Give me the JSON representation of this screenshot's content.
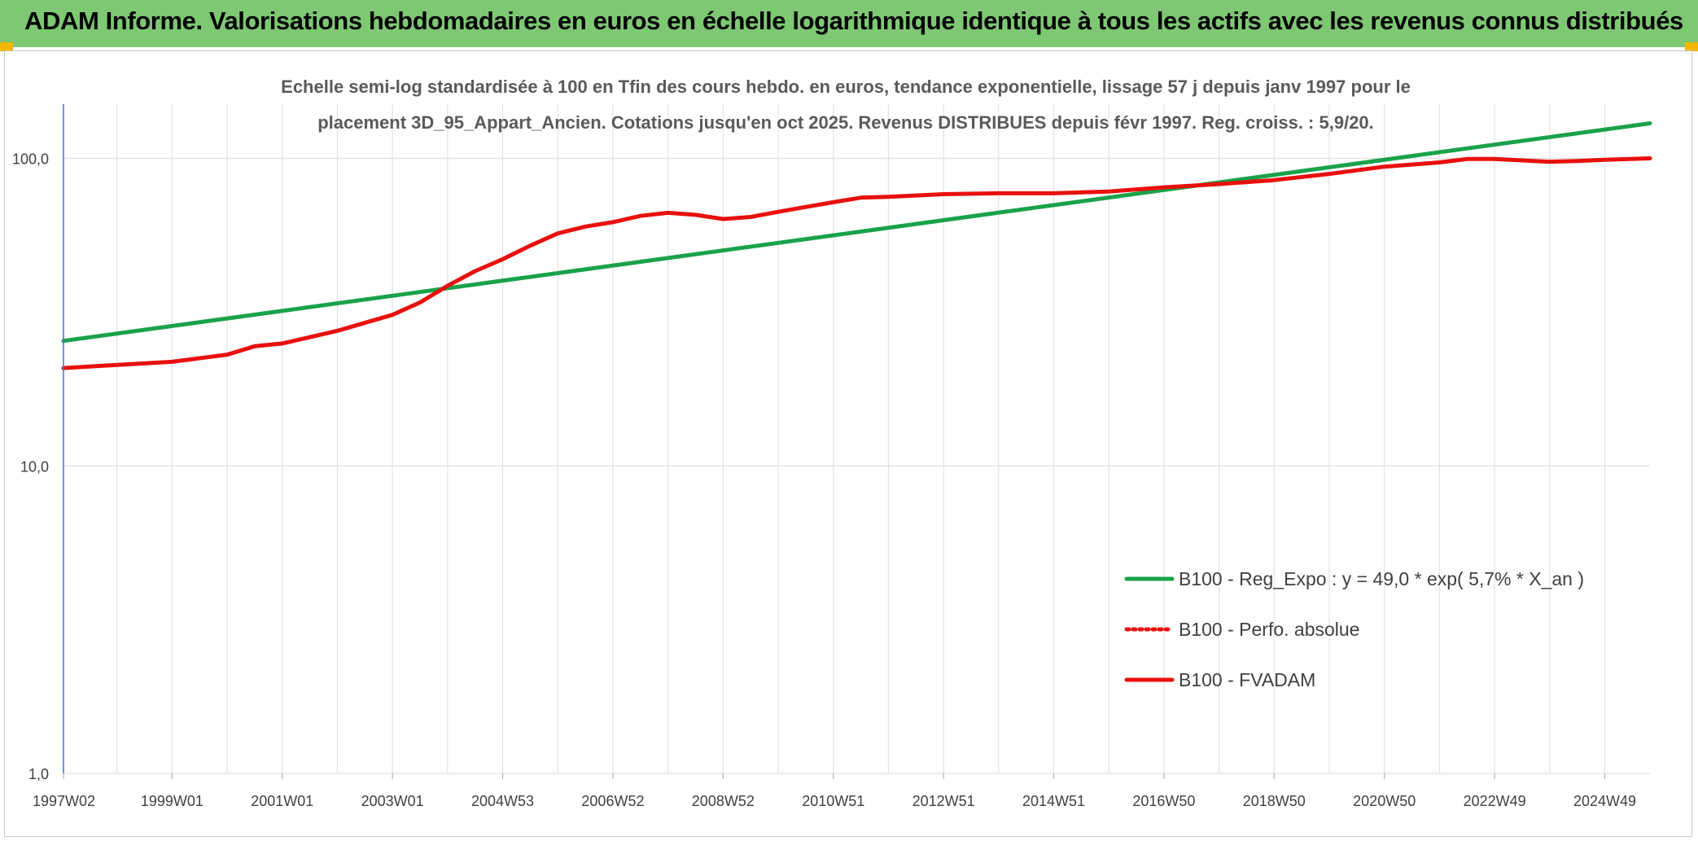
{
  "header": {
    "title": "ADAM Informe. Valorisations hebdomadaires en euros en échelle logarithmique identique à tous les actifs avec les revenus connus distribués"
  },
  "colors": {
    "banner": "#7ec874",
    "corner_accent": "#f2b705",
    "regression_line": "#1aa24a",
    "fvadam_line": "#e8100e",
    "perfo_line": "#e8100e"
  },
  "chart_data": {
    "type": "line",
    "title_lines": [
      "Echelle semi-log standardisée à 100 en Tfin des cours hebdo. en euros, tendance exponentielle, lissage 57 j depuis janv 1997 pour le",
      "placement 3D_95_Appart_Ancien. Cotations jusqu'en oct 2025. Revenus DISTRIBUES depuis févr 1997. Reg. croiss. : 5,9/20."
    ],
    "y_scale": "log",
    "ylim": [
      1,
      150
    ],
    "y_ticks": [
      {
        "value": 1,
        "label": "1,0"
      },
      {
        "value": 10,
        "label": "10,0"
      },
      {
        "value": 100,
        "label": "100,0"
      }
    ],
    "xlim": [
      1997.03,
      2025.82
    ],
    "x_ticks": [
      {
        "value": 1997.03,
        "label": "1997W02"
      },
      {
        "value": 1999.0,
        "label": "1999W01"
      },
      {
        "value": 2001.0,
        "label": "2001W01"
      },
      {
        "value": 2003.0,
        "label": "2003W01"
      },
      {
        "value": 2005.0,
        "label": "2004W53"
      },
      {
        "value": 2007.0,
        "label": "2006W52"
      },
      {
        "value": 2009.0,
        "label": "2008W52"
      },
      {
        "value": 2011.0,
        "label": "2010W51"
      },
      {
        "value": 2013.0,
        "label": "2012W51"
      },
      {
        "value": 2015.0,
        "label": "2014W51"
      },
      {
        "value": 2017.0,
        "label": "2016W50"
      },
      {
        "value": 2019.0,
        "label": "2018W50"
      },
      {
        "value": 2021.0,
        "label": "2020W50"
      },
      {
        "value": 2023.0,
        "label": "2022W49"
      },
      {
        "value": 2025.0,
        "label": "2024W49"
      }
    ],
    "grid": true,
    "legend_position": "lower-right",
    "series": [
      {
        "name": "B100 - Reg_Expo : y = 49,0 * exp( 5,7% *  X_an )",
        "style": "solid",
        "color": "#1aa24a",
        "x": [
          1997.03,
          2025.82
        ],
        "y": [
          25.5,
          130.0
        ]
      },
      {
        "name": "B100 - Perfo. absolue",
        "style": "dotted",
        "color": "#e8100e",
        "x": [],
        "y": []
      },
      {
        "name": "B100 - FVADAM",
        "style": "solid",
        "color": "#e8100e",
        "x": [
          1997.03,
          1998.0,
          1999.0,
          2000.0,
          2000.5,
          2001.0,
          2002.0,
          2003.0,
          2003.5,
          2004.0,
          2004.5,
          2005.0,
          2005.5,
          2006.0,
          2006.5,
          2007.0,
          2007.5,
          2008.0,
          2008.5,
          2009.0,
          2009.5,
          2010.0,
          2010.5,
          2011.0,
          2011.5,
          2012.0,
          2013.0,
          2014.0,
          2015.0,
          2016.0,
          2017.0,
          2018.0,
          2019.0,
          2020.0,
          2021.0,
          2022.0,
          2022.5,
          2023.0,
          2023.5,
          2024.0,
          2024.5,
          2025.0,
          2025.82
        ],
        "y": [
          20.8,
          21.3,
          21.8,
          23.0,
          24.5,
          25.0,
          27.5,
          31.0,
          34.0,
          38.5,
          43.0,
          47.0,
          52.0,
          57.0,
          60.0,
          62.0,
          65.0,
          66.5,
          65.5,
          63.5,
          64.5,
          67.0,
          69.5,
          72.0,
          74.5,
          75.0,
          76.5,
          77.0,
          77.0,
          78.0,
          80.5,
          82.5,
          85.0,
          89.0,
          94.0,
          97.0,
          99.5,
          99.5,
          98.5,
          97.5,
          98.0,
          99.0,
          100.0
        ]
      }
    ]
  }
}
